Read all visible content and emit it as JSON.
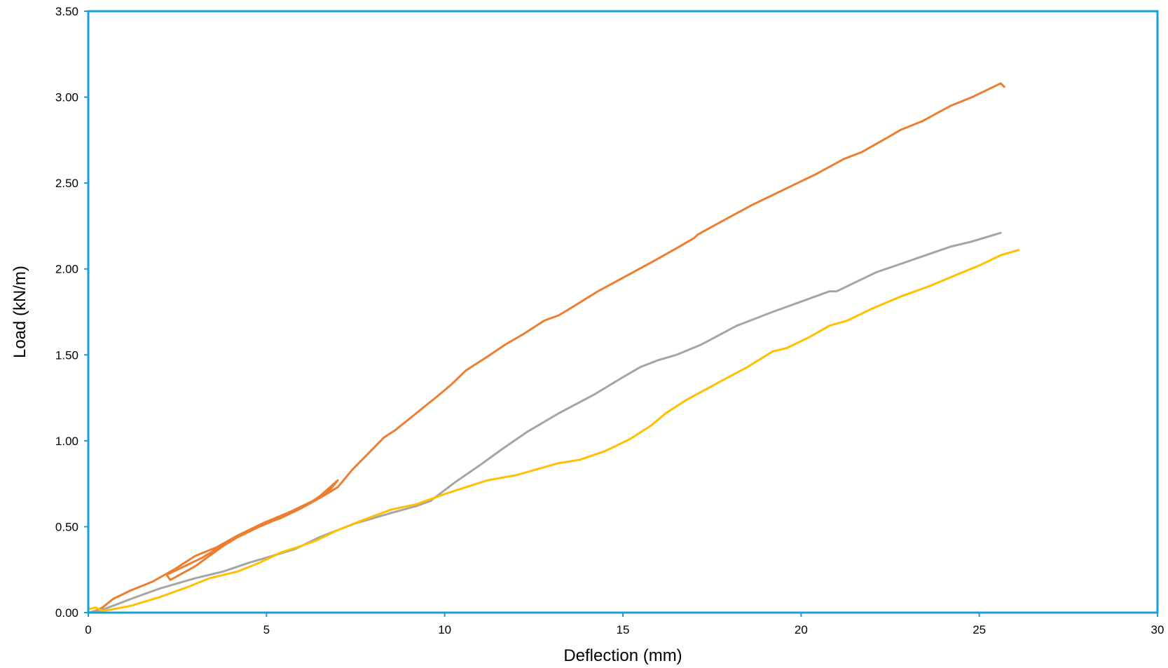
{
  "chart_data": {
    "type": "line",
    "title": "",
    "xlabel": "Deflection (mm)",
    "ylabel": "Load (kN/m)",
    "xlim": [
      0,
      30
    ],
    "ylim": [
      0,
      3.5
    ],
    "x_ticks": [
      0,
      5,
      10,
      15,
      20,
      25,
      30
    ],
    "x_tick_labels": [
      "0",
      "5",
      "10",
      "15",
      "20",
      "25",
      "30"
    ],
    "y_ticks": [
      0,
      0.5,
      1.0,
      1.5,
      2.0,
      2.5,
      3.0,
      3.5
    ],
    "y_tick_labels": [
      "0.00",
      "0.50",
      "1.00",
      "1.50",
      "2.00",
      "2.50",
      "3.00",
      "3.50"
    ],
    "grid": false,
    "legend": "none",
    "axis_color": "#1a9fd9",
    "series": [
      {
        "color": "#ed7d31",
        "points": [
          [
            0,
            0
          ],
          [
            0.2,
            0.01
          ],
          [
            0.4,
            0.03
          ],
          [
            0.7,
            0.08
          ],
          [
            1.2,
            0.13
          ],
          [
            1.8,
            0.18
          ],
          [
            2.4,
            0.25
          ],
          [
            3.0,
            0.33
          ],
          [
            3.6,
            0.38
          ],
          [
            4.2,
            0.45
          ],
          [
            4.9,
            0.52
          ],
          [
            5.7,
            0.59
          ],
          [
            6.4,
            0.66
          ],
          [
            7.0,
            0.77
          ],
          [
            6.8,
            0.72
          ],
          [
            6.3,
            0.65
          ],
          [
            5.6,
            0.57
          ],
          [
            4.8,
            0.5
          ],
          [
            4.0,
            0.42
          ],
          [
            3.2,
            0.32
          ],
          [
            2.2,
            0.22
          ],
          [
            2.3,
            0.19
          ],
          [
            3.0,
            0.27
          ],
          [
            3.8,
            0.39
          ],
          [
            4.6,
            0.49
          ],
          [
            5.4,
            0.55
          ],
          [
            6.0,
            0.61
          ],
          [
            6.6,
            0.68
          ],
          [
            7.0,
            0.73
          ],
          [
            7.4,
            0.83
          ],
          [
            8.3,
            1.02
          ],
          [
            8.6,
            1.06
          ],
          [
            9.2,
            1.16
          ],
          [
            9.8,
            1.26
          ],
          [
            10.2,
            1.33
          ],
          [
            10.6,
            1.41
          ],
          [
            11.2,
            1.49
          ],
          [
            11.7,
            1.56
          ],
          [
            12.2,
            1.62
          ],
          [
            12.8,
            1.7
          ],
          [
            13.2,
            1.73
          ],
          [
            13.6,
            1.78
          ],
          [
            14.3,
            1.87
          ],
          [
            15.1,
            1.96
          ],
          [
            15.9,
            2.05
          ],
          [
            16.5,
            2.12
          ],
          [
            17.0,
            2.18
          ],
          [
            17.1,
            2.2
          ],
          [
            17.8,
            2.28
          ],
          [
            18.6,
            2.37
          ],
          [
            19.5,
            2.46
          ],
          [
            20.4,
            2.55
          ],
          [
            21.2,
            2.64
          ],
          [
            21.7,
            2.68
          ],
          [
            22.3,
            2.75
          ],
          [
            22.8,
            2.81
          ],
          [
            23.4,
            2.86
          ],
          [
            24.2,
            2.95
          ],
          [
            24.8,
            3.0
          ],
          [
            25.3,
            3.05
          ],
          [
            25.6,
            3.08
          ],
          [
            25.7,
            3.06
          ]
        ]
      },
      {
        "color": "#a5a5a5",
        "points": [
          [
            0,
            0
          ],
          [
            0.3,
            0.01
          ],
          [
            0.7,
            0.04
          ],
          [
            1.2,
            0.08
          ],
          [
            2.0,
            0.14
          ],
          [
            3.0,
            0.2
          ],
          [
            3.8,
            0.24
          ],
          [
            4.5,
            0.29
          ],
          [
            5.0,
            0.32
          ],
          [
            5.8,
            0.37
          ],
          [
            6.5,
            0.44
          ],
          [
            7.5,
            0.52
          ],
          [
            8.5,
            0.58
          ],
          [
            9.2,
            0.62
          ],
          [
            9.6,
            0.65
          ],
          [
            10.3,
            0.76
          ],
          [
            11.0,
            0.86
          ],
          [
            11.6,
            0.95
          ],
          [
            12.3,
            1.05
          ],
          [
            13.2,
            1.16
          ],
          [
            14.2,
            1.27
          ],
          [
            15.0,
            1.37
          ],
          [
            15.5,
            1.43
          ],
          [
            16.0,
            1.47
          ],
          [
            16.5,
            1.5
          ],
          [
            17.2,
            1.56
          ],
          [
            18.2,
            1.67
          ],
          [
            19.2,
            1.75
          ],
          [
            20.0,
            1.81
          ],
          [
            20.8,
            1.87
          ],
          [
            21.0,
            1.87
          ],
          [
            21.5,
            1.92
          ],
          [
            22.1,
            1.98
          ],
          [
            22.8,
            2.03
          ],
          [
            23.5,
            2.08
          ],
          [
            24.2,
            2.13
          ],
          [
            24.8,
            2.16
          ],
          [
            25.6,
            2.21
          ]
        ]
      },
      {
        "color": "#ffc000",
        "points": [
          [
            0,
            0.02
          ],
          [
            0.2,
            0.03
          ],
          [
            0.4,
            0.01
          ],
          [
            0.7,
            0.02
          ],
          [
            1.2,
            0.04
          ],
          [
            2.0,
            0.09
          ],
          [
            2.8,
            0.15
          ],
          [
            3.4,
            0.2
          ],
          [
            4.2,
            0.24
          ],
          [
            4.8,
            0.29
          ],
          [
            5.4,
            0.35
          ],
          [
            6.0,
            0.39
          ],
          [
            6.4,
            0.42
          ],
          [
            7.0,
            0.48
          ],
          [
            7.6,
            0.53
          ],
          [
            8.5,
            0.6
          ],
          [
            9.2,
            0.63
          ],
          [
            10.0,
            0.69
          ],
          [
            11.2,
            0.77
          ],
          [
            12.0,
            0.8
          ],
          [
            13.2,
            0.87
          ],
          [
            13.8,
            0.89
          ],
          [
            14.5,
            0.94
          ],
          [
            15.2,
            1.01
          ],
          [
            15.8,
            1.09
          ],
          [
            16.2,
            1.16
          ],
          [
            16.8,
            1.24
          ],
          [
            17.6,
            1.33
          ],
          [
            18.5,
            1.43
          ],
          [
            19.2,
            1.52
          ],
          [
            19.6,
            1.54
          ],
          [
            20.2,
            1.6
          ],
          [
            20.8,
            1.67
          ],
          [
            21.3,
            1.7
          ],
          [
            22.0,
            1.77
          ],
          [
            22.8,
            1.84
          ],
          [
            23.6,
            1.9
          ],
          [
            24.4,
            1.97
          ],
          [
            25.0,
            2.02
          ],
          [
            25.6,
            2.08
          ],
          [
            26.1,
            2.11
          ]
        ]
      }
    ]
  }
}
